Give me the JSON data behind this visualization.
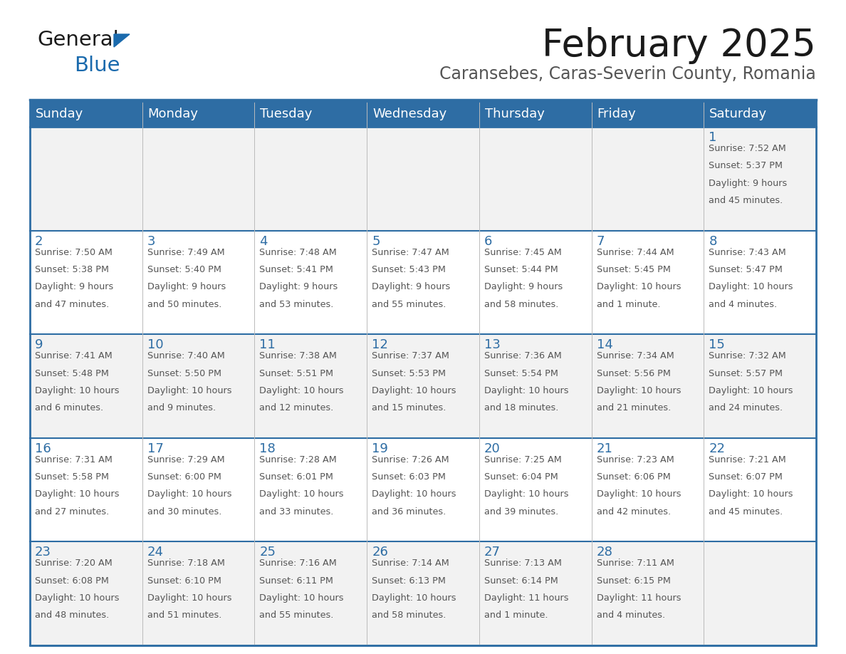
{
  "title": "February 2025",
  "subtitle": "Caransebes, Caras-Severin County, Romania",
  "header_bg": "#2E6DA4",
  "header_text": "#FFFFFF",
  "row_bg_light": "#F2F2F2",
  "row_bg_white": "#FFFFFF",
  "date_color": "#2E6DA4",
  "text_color": "#555555",
  "separator_color": "#2E6DA4",
  "grid_color": "#BBBBBB",
  "days_of_week": [
    "Sunday",
    "Monday",
    "Tuesday",
    "Wednesday",
    "Thursday",
    "Friday",
    "Saturday"
  ],
  "days": [
    {
      "day": 1,
      "col": 6,
      "row": 0,
      "sunrise": "7:52 AM",
      "sunset": "5:37 PM",
      "daylight": "9 hours and 45 minutes."
    },
    {
      "day": 2,
      "col": 0,
      "row": 1,
      "sunrise": "7:50 AM",
      "sunset": "5:38 PM",
      "daylight": "9 hours and 47 minutes."
    },
    {
      "day": 3,
      "col": 1,
      "row": 1,
      "sunrise": "7:49 AM",
      "sunset": "5:40 PM",
      "daylight": "9 hours and 50 minutes."
    },
    {
      "day": 4,
      "col": 2,
      "row": 1,
      "sunrise": "7:48 AM",
      "sunset": "5:41 PM",
      "daylight": "9 hours and 53 minutes."
    },
    {
      "day": 5,
      "col": 3,
      "row": 1,
      "sunrise": "7:47 AM",
      "sunset": "5:43 PM",
      "daylight": "9 hours and 55 minutes."
    },
    {
      "day": 6,
      "col": 4,
      "row": 1,
      "sunrise": "7:45 AM",
      "sunset": "5:44 PM",
      "daylight": "9 hours and 58 minutes."
    },
    {
      "day": 7,
      "col": 5,
      "row": 1,
      "sunrise": "7:44 AM",
      "sunset": "5:45 PM",
      "daylight": "10 hours and 1 minute."
    },
    {
      "day": 8,
      "col": 6,
      "row": 1,
      "sunrise": "7:43 AM",
      "sunset": "5:47 PM",
      "daylight": "10 hours and 4 minutes."
    },
    {
      "day": 9,
      "col": 0,
      "row": 2,
      "sunrise": "7:41 AM",
      "sunset": "5:48 PM",
      "daylight": "10 hours and 6 minutes."
    },
    {
      "day": 10,
      "col": 1,
      "row": 2,
      "sunrise": "7:40 AM",
      "sunset": "5:50 PM",
      "daylight": "10 hours and 9 minutes."
    },
    {
      "day": 11,
      "col": 2,
      "row": 2,
      "sunrise": "7:38 AM",
      "sunset": "5:51 PM",
      "daylight": "10 hours and 12 minutes."
    },
    {
      "day": 12,
      "col": 3,
      "row": 2,
      "sunrise": "7:37 AM",
      "sunset": "5:53 PM",
      "daylight": "10 hours and 15 minutes."
    },
    {
      "day": 13,
      "col": 4,
      "row": 2,
      "sunrise": "7:36 AM",
      "sunset": "5:54 PM",
      "daylight": "10 hours and 18 minutes."
    },
    {
      "day": 14,
      "col": 5,
      "row": 2,
      "sunrise": "7:34 AM",
      "sunset": "5:56 PM",
      "daylight": "10 hours and 21 minutes."
    },
    {
      "day": 15,
      "col": 6,
      "row": 2,
      "sunrise": "7:32 AM",
      "sunset": "5:57 PM",
      "daylight": "10 hours and 24 minutes."
    },
    {
      "day": 16,
      "col": 0,
      "row": 3,
      "sunrise": "7:31 AM",
      "sunset": "5:58 PM",
      "daylight": "10 hours and 27 minutes."
    },
    {
      "day": 17,
      "col": 1,
      "row": 3,
      "sunrise": "7:29 AM",
      "sunset": "6:00 PM",
      "daylight": "10 hours and 30 minutes."
    },
    {
      "day": 18,
      "col": 2,
      "row": 3,
      "sunrise": "7:28 AM",
      "sunset": "6:01 PM",
      "daylight": "10 hours and 33 minutes."
    },
    {
      "day": 19,
      "col": 3,
      "row": 3,
      "sunrise": "7:26 AM",
      "sunset": "6:03 PM",
      "daylight": "10 hours and 36 minutes."
    },
    {
      "day": 20,
      "col": 4,
      "row": 3,
      "sunrise": "7:25 AM",
      "sunset": "6:04 PM",
      "daylight": "10 hours and 39 minutes."
    },
    {
      "day": 21,
      "col": 5,
      "row": 3,
      "sunrise": "7:23 AM",
      "sunset": "6:06 PM",
      "daylight": "10 hours and 42 minutes."
    },
    {
      "day": 22,
      "col": 6,
      "row": 3,
      "sunrise": "7:21 AM",
      "sunset": "6:07 PM",
      "daylight": "10 hours and 45 minutes."
    },
    {
      "day": 23,
      "col": 0,
      "row": 4,
      "sunrise": "7:20 AM",
      "sunset": "6:08 PM",
      "daylight": "10 hours and 48 minutes."
    },
    {
      "day": 24,
      "col": 1,
      "row": 4,
      "sunrise": "7:18 AM",
      "sunset": "6:10 PM",
      "daylight": "10 hours and 51 minutes."
    },
    {
      "day": 25,
      "col": 2,
      "row": 4,
      "sunrise": "7:16 AM",
      "sunset": "6:11 PM",
      "daylight": "10 hours and 55 minutes."
    },
    {
      "day": 26,
      "col": 3,
      "row": 4,
      "sunrise": "7:14 AM",
      "sunset": "6:13 PM",
      "daylight": "10 hours and 58 minutes."
    },
    {
      "day": 27,
      "col": 4,
      "row": 4,
      "sunrise": "7:13 AM",
      "sunset": "6:14 PM",
      "daylight": "11 hours and 1 minute."
    },
    {
      "day": 28,
      "col": 5,
      "row": 4,
      "sunrise": "7:11 AM",
      "sunset": "6:15 PM",
      "daylight": "11 hours and 4 minutes."
    }
  ],
  "logo_color_general": "#1a1a1a",
  "logo_color_blue": "#1a6aad",
  "logo_triangle_color": "#1a6aad",
  "num_rows": 5,
  "num_cols": 7
}
